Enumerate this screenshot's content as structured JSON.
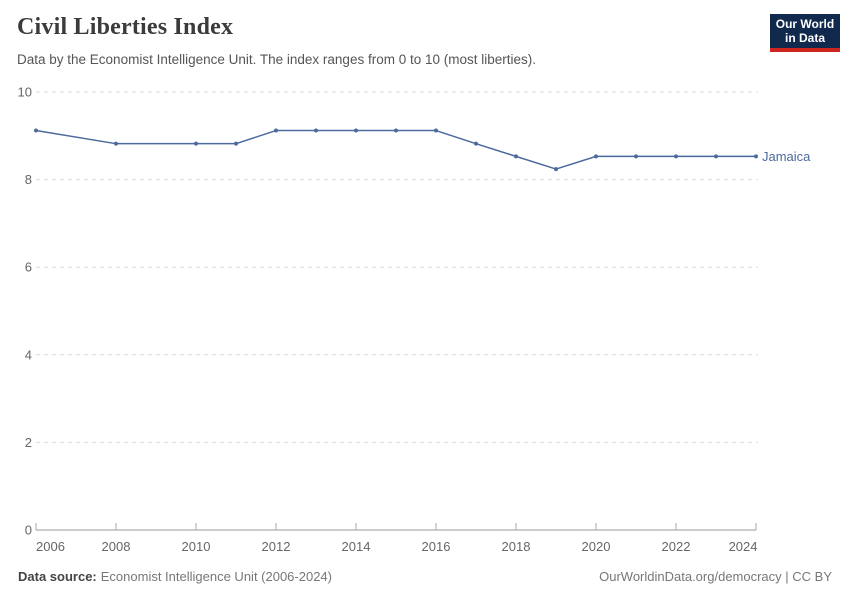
{
  "header": {
    "title": "Civil Liberties Index",
    "subtitle": "Data by the Economist Intelligence Unit. The index ranges from 0 to 10 (most liberties).",
    "logo": {
      "line1": "Our World",
      "line2": "in Data",
      "bg_color": "#12294E",
      "bar_color": "#CE261F"
    }
  },
  "chart_data": {
    "type": "line",
    "title": "Civil Liberties Index",
    "xlabel": "",
    "ylabel": "",
    "x": [
      2006,
      2008,
      2010,
      2011,
      2012,
      2013,
      2014,
      2015,
      2016,
      2017,
      2018,
      2019,
      2020,
      2021,
      2022,
      2023,
      2024
    ],
    "series": [
      {
        "name": "Jamaica",
        "color": "#4C6A9D",
        "values": [
          9.12,
          8.82,
          8.82,
          8.82,
          9.12,
          9.12,
          9.12,
          9.12,
          9.12,
          8.82,
          8.53,
          8.24,
          8.53,
          8.53,
          8.53,
          8.53,
          8.53
        ]
      }
    ],
    "xlim": [
      2006,
      2024
    ],
    "ylim": [
      0,
      10
    ],
    "x_ticks": [
      2006,
      2008,
      2010,
      2012,
      2014,
      2016,
      2018,
      2020,
      2022,
      2024
    ],
    "y_ticks": [
      0,
      2,
      4,
      6,
      8,
      10
    ],
    "grid": true,
    "legend_position": "end-of-line",
    "colors": {
      "grid": "#dcdcdc",
      "axis": "#999999",
      "tick": "#aaaaaa",
      "tick_label": "#666666"
    }
  },
  "footer": {
    "source_label": "Data source:",
    "source_value": "Economist Intelligence Unit (2006-2024)",
    "attribution": "OurWorldinData.org/democracy | CC BY"
  }
}
